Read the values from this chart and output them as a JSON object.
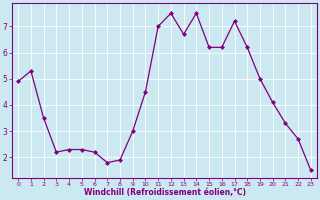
{
  "x": [
    0,
    1,
    2,
    3,
    4,
    5,
    6,
    7,
    8,
    9,
    10,
    11,
    12,
    13,
    14,
    15,
    16,
    17,
    18,
    19,
    20,
    21,
    22,
    23
  ],
  "y": [
    4.9,
    5.3,
    3.5,
    2.2,
    2.3,
    2.3,
    2.2,
    1.8,
    1.9,
    3.0,
    4.5,
    7.0,
    7.5,
    6.7,
    7.5,
    6.2,
    6.2,
    7.2,
    6.2,
    5.0,
    4.1,
    3.3,
    2.7,
    1.5
  ],
  "line_color": "#800080",
  "marker": "D",
  "markersize": 2.0,
  "linewidth": 0.9,
  "bg_color": "#cce8f0",
  "grid_color": "#ffffff",
  "xlabel": "Windchill (Refroidissement éolien,°C)",
  "yticks": [
    2,
    3,
    4,
    5,
    6,
    7
  ],
  "xticks": [
    0,
    1,
    2,
    3,
    4,
    5,
    6,
    7,
    8,
    9,
    10,
    11,
    12,
    13,
    14,
    15,
    16,
    17,
    18,
    19,
    20,
    21,
    22,
    23
  ],
  "ylim": [
    1.2,
    7.9
  ],
  "xlim": [
    -0.5,
    23.5
  ],
  "label_color": "#800080",
  "tick_color": "#800080",
  "axis_color": "#800080",
  "xlabel_fontsize": 5.5,
  "xtick_fontsize": 4.5,
  "ytick_fontsize": 5.5
}
